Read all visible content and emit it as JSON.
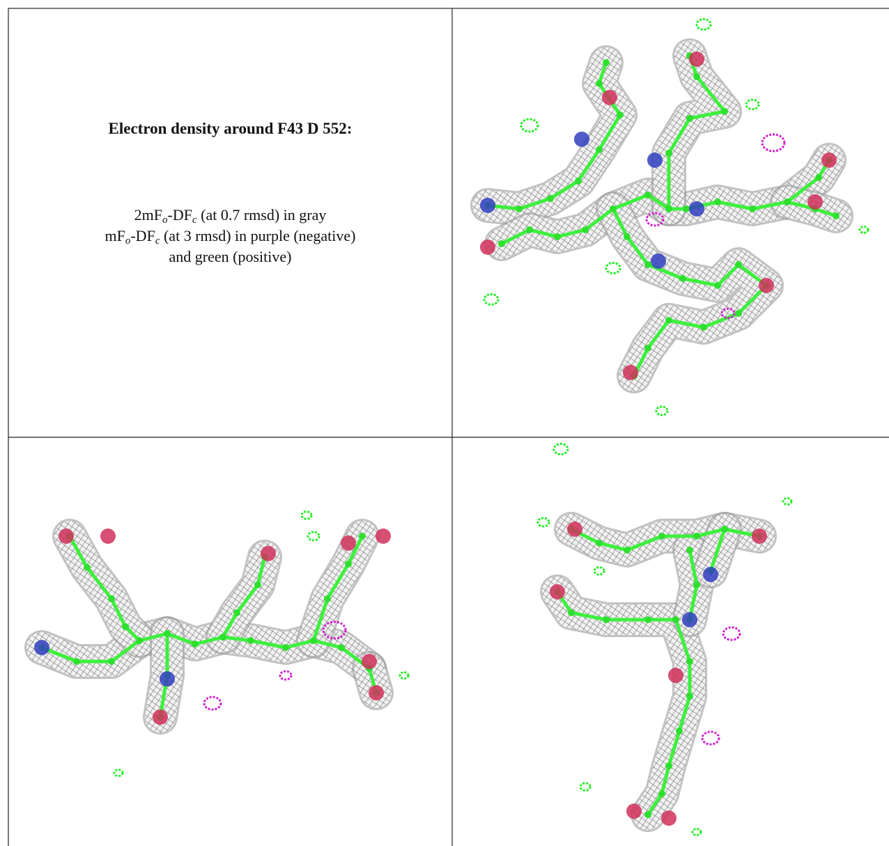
{
  "caption": {
    "title": "Electron density around F43 D 552:",
    "line1": [
      "2mF",
      "o",
      "-DF",
      "c",
      " (at 0.7 rmsd) in gray"
    ],
    "line2": [
      "mF",
      "o",
      "-DF",
      "c",
      " (at 3 rmsd) in purple (negative)"
    ],
    "line3": "and green (positive)"
  }
}
